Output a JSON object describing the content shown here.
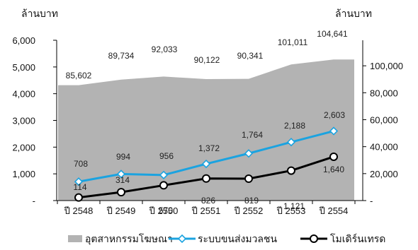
{
  "chart_data": {
    "type": "area",
    "categories": [
      "ปี 2548",
      "ปี 2549",
      "ปี 2550",
      "ปี 2551",
      "ปี 2552",
      "ปี 2553",
      "ปี 2554"
    ],
    "left_axis": {
      "unit_label": "ล้านบาท",
      "range": [
        0,
        6000
      ],
      "ticks": [
        0,
        1000,
        2000,
        3000,
        4000,
        5000,
        6000
      ],
      "tick_labels": [
        "-",
        "1,000",
        "2,000",
        "3,000",
        "4,000",
        "5,000",
        "6,000"
      ]
    },
    "right_axis": {
      "unit_label": "ล้านบาท",
      "range": [
        0,
        120000
      ],
      "ticks": [
        0,
        20000,
        40000,
        60000,
        80000,
        100000
      ],
      "tick_labels": [
        "-",
        "20,000",
        "40,000",
        "60,000",
        "80,000",
        "100,000"
      ]
    },
    "series": [
      {
        "name": "อุตสาหกรรมโฆษณา",
        "type": "area",
        "axis": "right",
        "color": "#b3b3b3",
        "values": [
          85602,
          89734,
          92033,
          90122,
          90341,
          101011,
          104641
        ],
        "labels": [
          "85,602",
          "89,734",
          "92,033",
          "90,122",
          "90,341",
          "101,011",
          "104,641"
        ]
      },
      {
        "name": "ระบบขนส่งมวลชน",
        "type": "line",
        "axis": "left",
        "color": "#1ba3e0",
        "marker": "diamond",
        "values": [
          708,
          994,
          956,
          1372,
          1764,
          2188,
          2603
        ],
        "labels": [
          "708",
          "994",
          "956",
          "1,372",
          "1,764",
          "2,188",
          "2,603"
        ]
      },
      {
        "name": "โมเดิร์นเทรด",
        "type": "line",
        "axis": "left",
        "color": "#000000",
        "marker": "circle",
        "values": [
          114,
          314,
          570,
          826,
          819,
          1121,
          1640
        ],
        "labels": [
          "114",
          "314",
          "570",
          "826",
          "819",
          "1,121",
          "1,640"
        ]
      }
    ],
    "legend_position": "bottom",
    "grid": false
  }
}
